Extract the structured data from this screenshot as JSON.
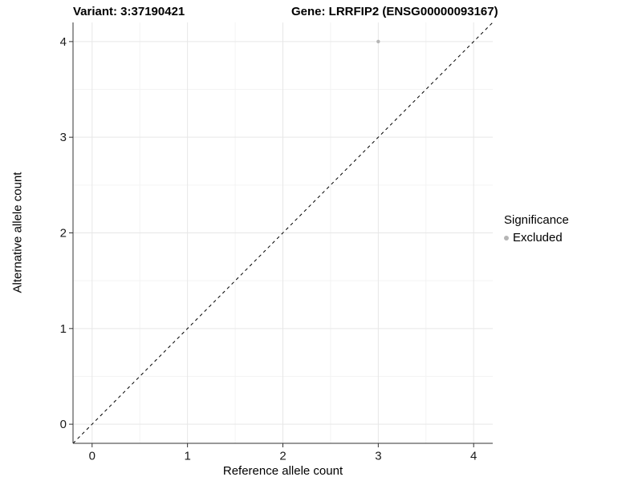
{
  "titles": {
    "variant": "Variant: 3:37190421",
    "gene": "Gene: LRRFIP2 (ENSG00000093167)"
  },
  "axes": {
    "x_label": "Reference allele count",
    "y_label": "Alternative allele count"
  },
  "legend": {
    "title": "Significance",
    "items": [
      {
        "label": "Excluded",
        "color": "#b5b5b5"
      }
    ]
  },
  "colors": {
    "background": "#ffffff",
    "grid_major": "#e7e7e7",
    "grid_minor": "#f3f3f3",
    "axis_line": "#333333",
    "reference_line": "#000000",
    "point": "#b5b5b5",
    "text": "#000000"
  },
  "chart_data": {
    "type": "scatter",
    "title": "Variant: 3:37190421    Gene: LRRFIP2 (ENSG00000093167)",
    "xlabel": "Reference allele count",
    "ylabel": "Alternative allele count",
    "xlim": [
      -0.2,
      4.2
    ],
    "ylim": [
      -0.2,
      4.2
    ],
    "x_ticks": [
      0,
      1,
      2,
      3,
      4
    ],
    "y_ticks": [
      0,
      1,
      2,
      3,
      4
    ],
    "x_minor_ticks": [
      0.5,
      1.5,
      2.5,
      3.5
    ],
    "y_minor_ticks": [
      0.5,
      1.5,
      2.5,
      3.5
    ],
    "grid": "major+minor",
    "legend_position": "right",
    "reference_line": {
      "kind": "abline",
      "slope": 1,
      "intercept": 0,
      "style": "dashed"
    },
    "series": [
      {
        "name": "Excluded",
        "color": "#b5b5b5",
        "points": [
          {
            "x": 3,
            "y": 4
          }
        ]
      }
    ]
  }
}
